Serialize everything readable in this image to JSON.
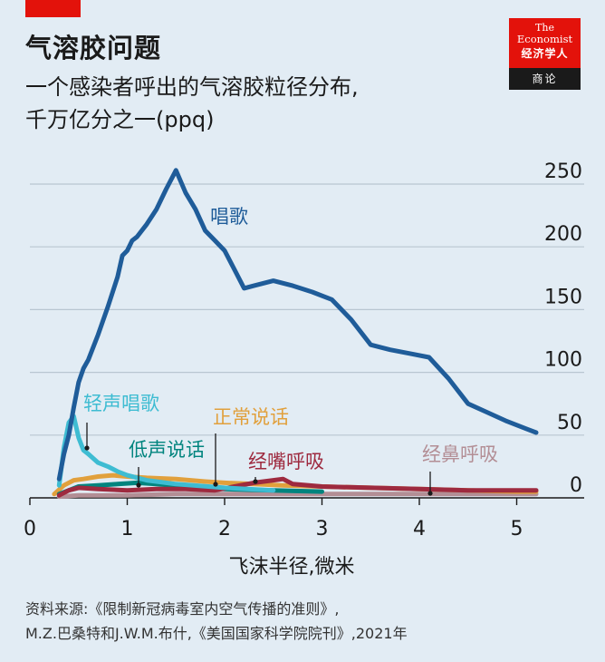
{
  "header": {
    "title": "气溶胶问题",
    "subtitle_line1": "一个感染者呼出的气溶胶粒径分布,",
    "subtitle_line2": "千万亿分之一(ppq)"
  },
  "logo": {
    "line1": "The",
    "line2": "Economist",
    "line3": "经济学人",
    "line4": "商论"
  },
  "chart_data": {
    "type": "line",
    "xlabel": "飞沫半径,微米",
    "ylabel": "",
    "xlim": [
      0,
      5.4
    ],
    "ylim": [
      0,
      260
    ],
    "x_ticks": [
      0,
      1,
      2,
      3,
      4,
      5
    ],
    "y_ticks": [
      0,
      50,
      100,
      150,
      200,
      250
    ],
    "grid": true,
    "y_axis_side": "right",
    "series": [
      {
        "name": "唱歌",
        "color": "#1f5c99",
        "x": [
          0.3,
          0.35,
          0.4,
          0.45,
          0.5,
          0.55,
          0.6,
          0.7,
          0.8,
          0.9,
          0.95,
          1.0,
          1.05,
          1.1,
          1.2,
          1.3,
          1.4,
          1.5,
          1.6,
          1.7,
          1.8,
          1.9,
          2.0,
          2.1,
          2.2,
          2.3,
          2.5,
          2.7,
          2.9,
          3.1,
          3.3,
          3.5,
          3.7,
          3.9,
          4.1,
          4.3,
          4.5,
          4.7,
          4.9,
          5.1,
          5.2
        ],
        "values": [
          15,
          35,
          50,
          72,
          92,
          103,
          110,
          130,
          152,
          176,
          193,
          197,
          205,
          208,
          218,
          230,
          246,
          261,
          243,
          230,
          213,
          205,
          197,
          182,
          167,
          169,
          173,
          169,
          164,
          158,
          142,
          122,
          118,
          115,
          112,
          95,
          75,
          68,
          61,
          55,
          52
        ]
      },
      {
        "name": "轻声唱歌",
        "color": "#3ebcd2",
        "x": [
          0.3,
          0.35,
          0.4,
          0.45,
          0.5,
          0.55,
          0.6,
          0.7,
          0.8,
          0.9,
          1.0,
          1.2,
          1.5,
          2.0,
          2.5
        ],
        "values": [
          10,
          40,
          60,
          65,
          48,
          38,
          35,
          28,
          25,
          21,
          18,
          14,
          11,
          8,
          6
        ]
      },
      {
        "name": "低声说话",
        "color": "#00847e",
        "x": [
          0.3,
          0.4,
          0.5,
          0.7,
          0.9,
          1.1,
          1.3,
          1.6,
          2.0,
          2.5,
          3.0
        ],
        "values": [
          3,
          6,
          9,
          10,
          11,
          12,
          11,
          9,
          7,
          6,
          5
        ]
      },
      {
        "name": "正常说话",
        "color": "#e1a03c",
        "x": [
          0.25,
          0.35,
          0.45,
          0.55,
          0.7,
          0.85,
          1.0,
          1.2,
          1.5,
          1.8,
          2.0,
          2.3,
          2.6,
          3.0,
          3.5,
          4.0,
          4.5,
          5.0,
          5.2
        ],
        "values": [
          3,
          10,
          14,
          15,
          17,
          18,
          17,
          16,
          15,
          13,
          12,
          11,
          10,
          9,
          8,
          7,
          6,
          5,
          5
        ]
      },
      {
        "name": "经嘴呼吸",
        "color": "#9e2a3f",
        "x": [
          0.3,
          0.4,
          0.5,
          0.7,
          1.0,
          1.3,
          1.6,
          1.9,
          2.1,
          2.3,
          2.5,
          2.6,
          2.7,
          3.0,
          3.5,
          4.0,
          4.5,
          5.0,
          5.2
        ],
        "values": [
          2,
          6,
          8,
          7,
          6,
          7,
          7,
          6,
          9,
          12,
          14,
          15,
          11,
          9,
          8,
          7,
          6,
          6,
          6
        ]
      },
      {
        "name": "经鼻呼吸",
        "color": "#b38e95",
        "x": [
          0.3,
          0.5,
          1.0,
          1.5,
          2.0,
          2.5,
          3.0,
          3.5,
          4.0,
          4.5,
          5.0,
          5.2
        ],
        "values": [
          1,
          2,
          2,
          3,
          3,
          3,
          3,
          3,
          3,
          3,
          3,
          3
        ]
      }
    ]
  },
  "source": {
    "line1": "资料来源:《限制新冠病毒室内空气传播的准则》,",
    "line2": "M.Z.巴桑特和J.W.M.布什,《美国国家科学院院刊》,2021年"
  }
}
